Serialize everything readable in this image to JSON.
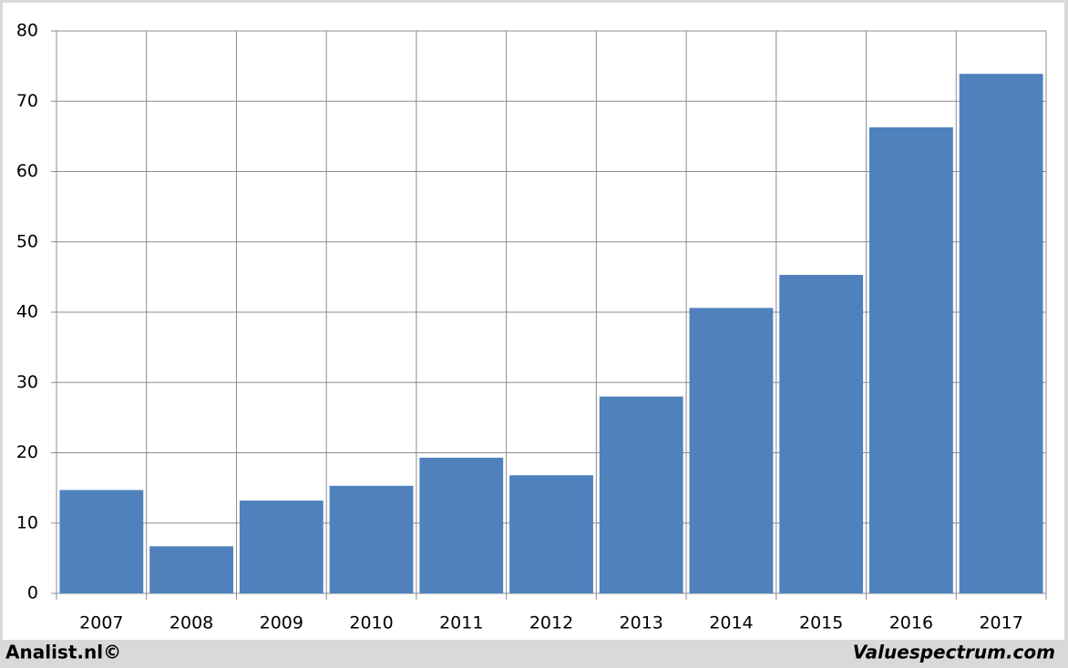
{
  "chart_data": {
    "type": "bar",
    "categories": [
      "2007",
      "2008",
      "2009",
      "2010",
      "2011",
      "2012",
      "2013",
      "2014",
      "2015",
      "2016",
      "2017"
    ],
    "values": [
      14.7,
      6.7,
      13.2,
      15.3,
      19.3,
      16.8,
      28.0,
      40.6,
      45.3,
      66.3,
      73.9
    ],
    "color": "#4f81bd",
    "ylim": [
      0,
      80
    ],
    "yticks": [
      0,
      10,
      20,
      30,
      40,
      50,
      60,
      70,
      80
    ],
    "grid": true,
    "credit_left": "Analist.nl©",
    "credit_right": "Valuespectrum.com"
  }
}
